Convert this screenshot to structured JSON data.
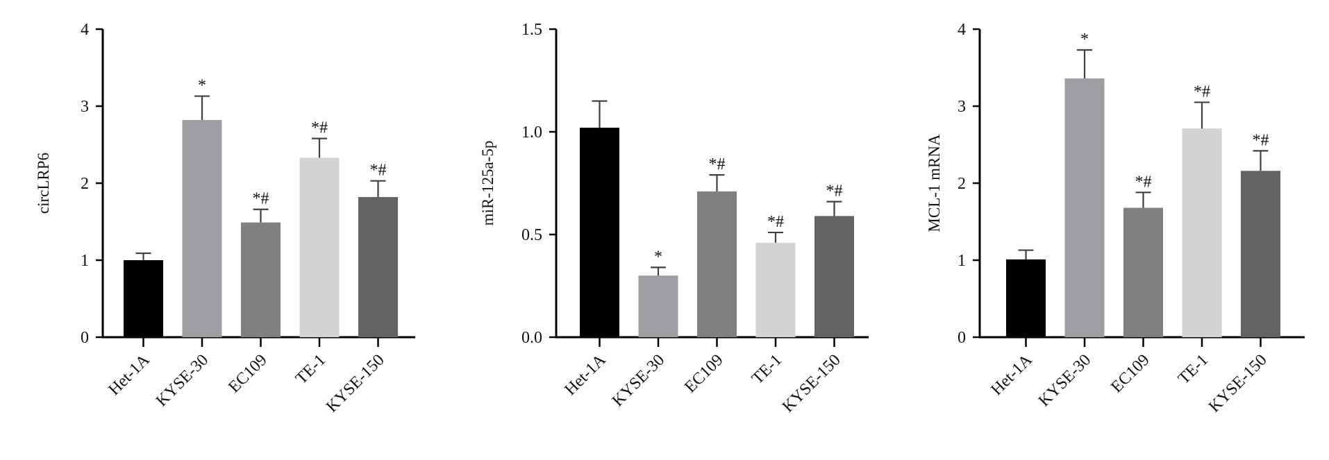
{
  "chart_data": [
    {
      "type": "bar",
      "ylabel": "circLRP6",
      "ylim": [
        0,
        4
      ],
      "yticks": [
        "0",
        "1",
        "2",
        "3",
        "4"
      ],
      "categories": [
        "Het-1A",
        "KYSE-30",
        "EC109",
        "TE-1",
        "KYSE-150"
      ],
      "values": [
        1.0,
        2.82,
        1.49,
        2.33,
        1.82
      ],
      "errors": [
        0.09,
        0.31,
        0.17,
        0.25,
        0.21
      ],
      "annotations": [
        "",
        "*",
        "*#",
        "*#",
        "*#"
      ],
      "colors": [
        "#000000",
        "#9e9ea2",
        "#808080",
        "#d3d3d3",
        "#636363"
      ]
    },
    {
      "type": "bar",
      "ylabel": "miR-125a-5p",
      "ylim": [
        0,
        1.5
      ],
      "yticks": [
        "0.0",
        "0.5",
        "1.0",
        "1.5"
      ],
      "categories": [
        "Het-1A",
        "KYSE-30",
        "EC109",
        "TE-1",
        "KYSE-150"
      ],
      "values": [
        1.02,
        0.3,
        0.71,
        0.46,
        0.59
      ],
      "errors": [
        0.13,
        0.04,
        0.08,
        0.05,
        0.07
      ],
      "annotations": [
        "",
        "*",
        "*#",
        "*#",
        "*#"
      ],
      "colors": [
        "#000000",
        "#9e9ea2",
        "#808080",
        "#d3d3d3",
        "#636363"
      ]
    },
    {
      "type": "bar",
      "ylabel": "MCL-1 mRNA",
      "ylim": [
        0,
        4
      ],
      "yticks": [
        "0",
        "1",
        "2",
        "3",
        "4"
      ],
      "categories": [
        "Het-1A",
        "KYSE-30",
        "EC109",
        "TE-1",
        "KYSE-150"
      ],
      "values": [
        1.01,
        3.36,
        1.68,
        2.71,
        2.16
      ],
      "errors": [
        0.12,
        0.37,
        0.2,
        0.34,
        0.26
      ],
      "annotations": [
        "",
        "*",
        "*#",
        "*#",
        "*#"
      ],
      "colors": [
        "#000000",
        "#9e9ea2",
        "#808080",
        "#d3d3d3",
        "#636363"
      ]
    }
  ]
}
